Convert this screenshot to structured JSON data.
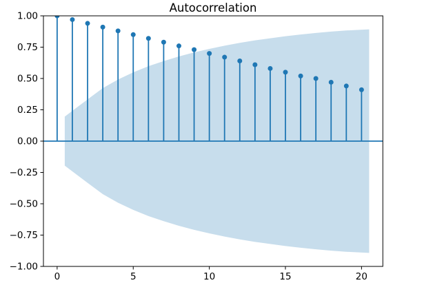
{
  "chart_data": {
    "type": "stem",
    "title": "Autocorrelation",
    "xlabel": "",
    "ylabel": "",
    "x": [
      0,
      1,
      2,
      3,
      4,
      5,
      6,
      7,
      8,
      9,
      10,
      11,
      12,
      13,
      14,
      15,
      16,
      17,
      18,
      19,
      20
    ],
    "values": [
      1.0,
      0.97,
      0.94,
      0.91,
      0.88,
      0.85,
      0.82,
      0.79,
      0.76,
      0.73,
      0.7,
      0.67,
      0.64,
      0.61,
      0.58,
      0.55,
      0.52,
      0.5,
      0.47,
      0.44,
      0.41
    ],
    "confidence_band": {
      "x": [
        0.5,
        2,
        3,
        4,
        5,
        6,
        7,
        8,
        9,
        10,
        11,
        12,
        13,
        14,
        15,
        16,
        17,
        18,
        19,
        20.5
      ],
      "upper": [
        0.196,
        0.333,
        0.423,
        0.492,
        0.549,
        0.598,
        0.639,
        0.676,
        0.708,
        0.736,
        0.762,
        0.784,
        0.804,
        0.821,
        0.837,
        0.851,
        0.863,
        0.874,
        0.883,
        0.892
      ],
      "lower": [
        -0.196,
        -0.333,
        -0.423,
        -0.492,
        -0.549,
        -0.598,
        -0.639,
        -0.676,
        -0.708,
        -0.736,
        -0.762,
        -0.784,
        -0.804,
        -0.821,
        -0.837,
        -0.851,
        -0.863,
        -0.874,
        -0.883,
        -0.892
      ]
    },
    "xlim": [
      -0.9,
      21.4
    ],
    "ylim": [
      -1.0,
      1.0
    ],
    "xticks": {
      "values": [
        0,
        5,
        10,
        15,
        20
      ],
      "labels": [
        "0",
        "5",
        "10",
        "15",
        "20"
      ]
    },
    "yticks": {
      "values": [
        1.0,
        0.75,
        0.5,
        0.25,
        0.0,
        -0.25,
        -0.5,
        -0.75,
        -1.0
      ],
      "labels": [
        "1.00",
        "0.75",
        "0.50",
        "0.25",
        "0.00",
        "−0.25",
        "−0.50",
        "−0.75",
        "−1.00"
      ]
    },
    "grid": false,
    "legend": null,
    "colors": {
      "stem": "#1f77b4",
      "marker": "#1f77b4",
      "zero_line": "#1f77b4",
      "confidence_band": "#c7ddec",
      "axis": "#000000",
      "text": "#000000",
      "background": "#ffffff"
    }
  }
}
